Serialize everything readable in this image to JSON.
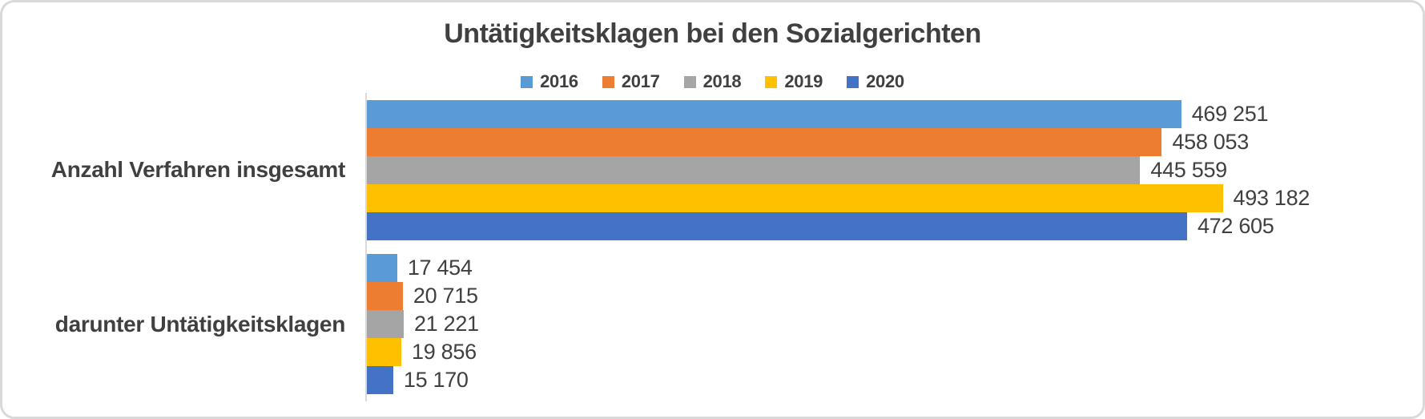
{
  "card": {
    "background": "#FFFFFF",
    "border_color": "#D9D9D9"
  },
  "chart_data": {
    "type": "bar",
    "orientation": "horizontal",
    "title": "Untätigkeitsklagen bei den Sozialgerichten",
    "categories": [
      "Anzahl Verfahren insgesamt",
      "darunter Untätigkeitsklagen"
    ],
    "series": [
      {
        "name": "2016",
        "color": "#5B9BD5",
        "values": [
          469251,
          17454
        ],
        "labels": [
          "469 251",
          "17 454"
        ]
      },
      {
        "name": "2017",
        "color": "#ED7D31",
        "values": [
          458053,
          20715
        ],
        "labels": [
          "458 053",
          "20 715"
        ]
      },
      {
        "name": "2018",
        "color": "#A5A5A5",
        "values": [
          445559,
          21221
        ],
        "labels": [
          "445 559",
          "21 221"
        ]
      },
      {
        "name": "2019",
        "color": "#FFC000",
        "values": [
          493182,
          19856
        ],
        "labels": [
          "493 182",
          "19 856"
        ]
      },
      {
        "name": "2020",
        "color": "#4472C4",
        "values": [
          472605,
          15170
        ],
        "labels": [
          "472 605",
          "15 170"
        ]
      }
    ],
    "xlabel": "",
    "ylabel": "",
    "xlim": [
      0,
      600000
    ],
    "grid": false,
    "legend_position": "top",
    "data_labels": true,
    "axis_line_color": "#D9D9D9",
    "text_color": "#404040"
  }
}
